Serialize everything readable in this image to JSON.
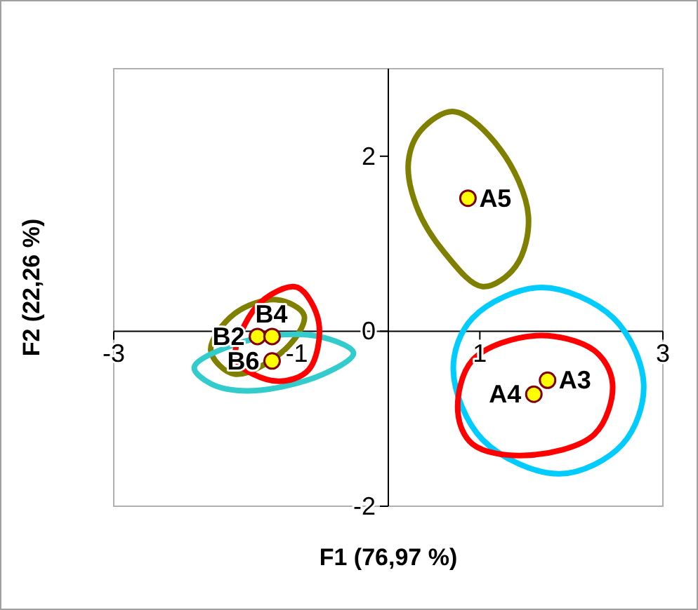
{
  "chart_data": {
    "type": "scatter",
    "xlabel": "F1 (76,97 %)",
    "ylabel": "F2 (22,26 %)",
    "xlim": [
      -3,
      3
    ],
    "ylim": [
      -2,
      3
    ],
    "xticks": [
      -3,
      -1,
      1,
      3
    ],
    "yticks": [
      -2,
      0,
      2
    ],
    "marker": "circle",
    "grid": false,
    "series": [
      {
        "color": "#ffff00",
        "x": [
          0.87,
          1.74,
          1.59,
          -1.43,
          -1.27,
          -1.27
        ],
        "values": [
          1.52,
          -0.56,
          -0.72,
          -0.06,
          -0.06,
          -0.34
        ]
      }
    ],
    "annotations": [
      {
        "text": "A5",
        "x": 0.87,
        "y": 1.52
      },
      {
        "text": "A3",
        "x": 1.74,
        "y": -0.56
      },
      {
        "text": "A4",
        "x": 1.59,
        "y": -0.72
      },
      {
        "text": "B2",
        "x": -1.43,
        "y": -0.06
      },
      {
        "text": "B4",
        "x": -1.27,
        "y": -0.06
      },
      {
        "text": "B6",
        "x": -1.27,
        "y": -0.34
      }
    ]
  }
}
